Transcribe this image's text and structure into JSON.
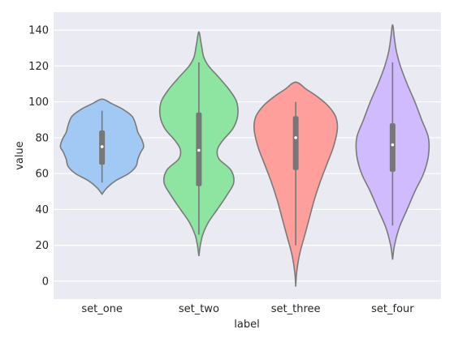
{
  "chart_data": {
    "type": "violin",
    "title": "",
    "xlabel": "label",
    "ylabel": "value",
    "ylim": [
      -10,
      150
    ],
    "yticks": [
      0,
      20,
      40,
      60,
      80,
      100,
      120,
      140
    ],
    "grid": true,
    "categories": [
      "set_one",
      "set_two",
      "set_three",
      "set_four"
    ],
    "series": [
      {
        "category": "set_one",
        "color": "#a1c9f4",
        "min": 55,
        "q1": 65,
        "median": 75,
        "q3": 84,
        "max": 95,
        "profile": [
          [
            48.5,
            0.0
          ],
          [
            52,
            0.1
          ],
          [
            56,
            0.28
          ],
          [
            60,
            0.55
          ],
          [
            64,
            0.7
          ],
          [
            68,
            0.74
          ],
          [
            72,
            0.8
          ],
          [
            75,
            0.86
          ],
          [
            79,
            0.82
          ],
          [
            83,
            0.74
          ],
          [
            87,
            0.7
          ],
          [
            92,
            0.62
          ],
          [
            96,
            0.42
          ],
          [
            99,
            0.2
          ],
          [
            101.5,
            0.0
          ]
        ]
      },
      {
        "category": "set_two",
        "color": "#8de5a1",
        "min": 26,
        "q1": 53,
        "median": 73,
        "q3": 94,
        "max": 122,
        "profile": [
          [
            14,
            0.0
          ],
          [
            20,
            0.03
          ],
          [
            26,
            0.08
          ],
          [
            33,
            0.2
          ],
          [
            40,
            0.38
          ],
          [
            48,
            0.58
          ],
          [
            55,
            0.72
          ],
          [
            62,
            0.66
          ],
          [
            68,
            0.42
          ],
          [
            73,
            0.38
          ],
          [
            78,
            0.48
          ],
          [
            85,
            0.7
          ],
          [
            92,
            0.8
          ],
          [
            100,
            0.78
          ],
          [
            107,
            0.62
          ],
          [
            114,
            0.4
          ],
          [
            120,
            0.2
          ],
          [
            125,
            0.1
          ],
          [
            132,
            0.05
          ],
          [
            139,
            0.0
          ]
        ]
      },
      {
        "category": "set_three",
        "color": "#ff9f9b",
        "min": 20,
        "q1": 62,
        "median": 80,
        "q3": 92,
        "max": 100,
        "profile": [
          [
            -3,
            0.0
          ],
          [
            5,
            0.02
          ],
          [
            15,
            0.08
          ],
          [
            25,
            0.18
          ],
          [
            35,
            0.28
          ],
          [
            45,
            0.38
          ],
          [
            55,
            0.5
          ],
          [
            65,
            0.64
          ],
          [
            75,
            0.78
          ],
          [
            85,
            0.86
          ],
          [
            92,
            0.82
          ],
          [
            98,
            0.66
          ],
          [
            103,
            0.44
          ],
          [
            107,
            0.22
          ],
          [
            111,
            0.0
          ]
        ]
      },
      {
        "category": "set_four",
        "color": "#d0bbff",
        "min": 31,
        "q1": 61,
        "median": 76,
        "q3": 88,
        "max": 122,
        "profile": [
          [
            12,
            0.0
          ],
          [
            20,
            0.04
          ],
          [
            30,
            0.14
          ],
          [
            40,
            0.3
          ],
          [
            50,
            0.46
          ],
          [
            60,
            0.64
          ],
          [
            70,
            0.74
          ],
          [
            80,
            0.74
          ],
          [
            90,
            0.6
          ],
          [
            100,
            0.46
          ],
          [
            110,
            0.3
          ],
          [
            120,
            0.16
          ],
          [
            128,
            0.08
          ],
          [
            135,
            0.04
          ],
          [
            143,
            0.0
          ]
        ]
      }
    ],
    "violin_edge_color": "#7a7a7a",
    "box_color": "#777777",
    "median_color": "#ffffff",
    "background_color": "#eaeaf2",
    "grid_color": "#ffffff"
  }
}
